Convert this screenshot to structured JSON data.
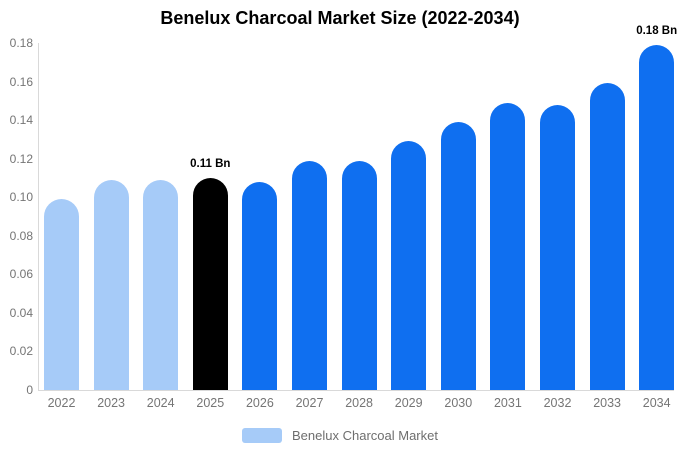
{
  "chart_data": {
    "type": "bar",
    "title": "Benelux Charcoal Market Size (2022-2034)",
    "categories": [
      "2022",
      "2023",
      "2024",
      "2025",
      "2026",
      "2027",
      "2028",
      "2029",
      "2030",
      "2031",
      "2032",
      "2033",
      "2034"
    ],
    "series": [
      {
        "name": "Benelux Charcoal Market",
        "values": [
          0.099,
          0.109,
          0.109,
          0.11,
          0.108,
          0.119,
          0.119,
          0.129,
          0.139,
          0.149,
          0.148,
          0.159,
          0.179
        ]
      }
    ],
    "unit": "Bn",
    "ylim": [
      0,
      0.18
    ],
    "ytick_labels_top_to_bottom": [
      "0.18",
      "0.16",
      "0.14",
      "0.12",
      "0.10",
      "0.08",
      "0.06",
      "0.04",
      "0.02",
      "0"
    ],
    "xlabel": "",
    "ylabel": "",
    "grid": false,
    "annotations": [
      {
        "category": "2025",
        "text": "0.11 Bn"
      },
      {
        "category": "2034",
        "text": "0.18 Bn"
      }
    ],
    "bar_color_roles": [
      "historical",
      "historical",
      "historical",
      "highlight",
      "forecast",
      "forecast",
      "forecast",
      "forecast",
      "forecast",
      "forecast",
      "forecast",
      "forecast",
      "forecast"
    ],
    "colors": {
      "historical": "#a6cbf8",
      "highlight": "#000000",
      "forecast": "#0f6ff0",
      "axis_line": "#d9d9d9",
      "tick_text": "#757575",
      "legend_text": "#6e6e6e",
      "title_text": "#000000"
    },
    "legend": {
      "position": "bottom",
      "label": "Benelux Charcoal Market",
      "swatch_color": "#a6cbf8"
    }
  }
}
